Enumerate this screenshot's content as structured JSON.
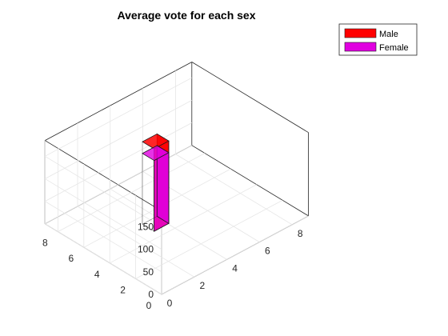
{
  "chart_data": {
    "type": "bar",
    "title": "Average vote for each sex",
    "xlabel": "",
    "ylabel": "",
    "zlabel": "",
    "view": "3d",
    "grid": true,
    "legend_position": "top-right",
    "x_ticks": [
      "0",
      "2",
      "4",
      "6",
      "8"
    ],
    "y_ticks": [
      "0",
      "2",
      "4",
      "6",
      "8"
    ],
    "z_ticks": [
      "0",
      "50",
      "100",
      "150"
    ],
    "xlim": [
      0,
      9
    ],
    "ylim": [
      0,
      9
    ],
    "zlim": [
      0,
      185
    ],
    "position": {
      "x": 3.6,
      "y": 5.0
    },
    "bar_width": 0.9,
    "series": [
      {
        "name": "Male",
        "value": 183,
        "color": "#ff0000"
      },
      {
        "name": "Female",
        "value": 157,
        "color": "#e000e0"
      }
    ]
  }
}
